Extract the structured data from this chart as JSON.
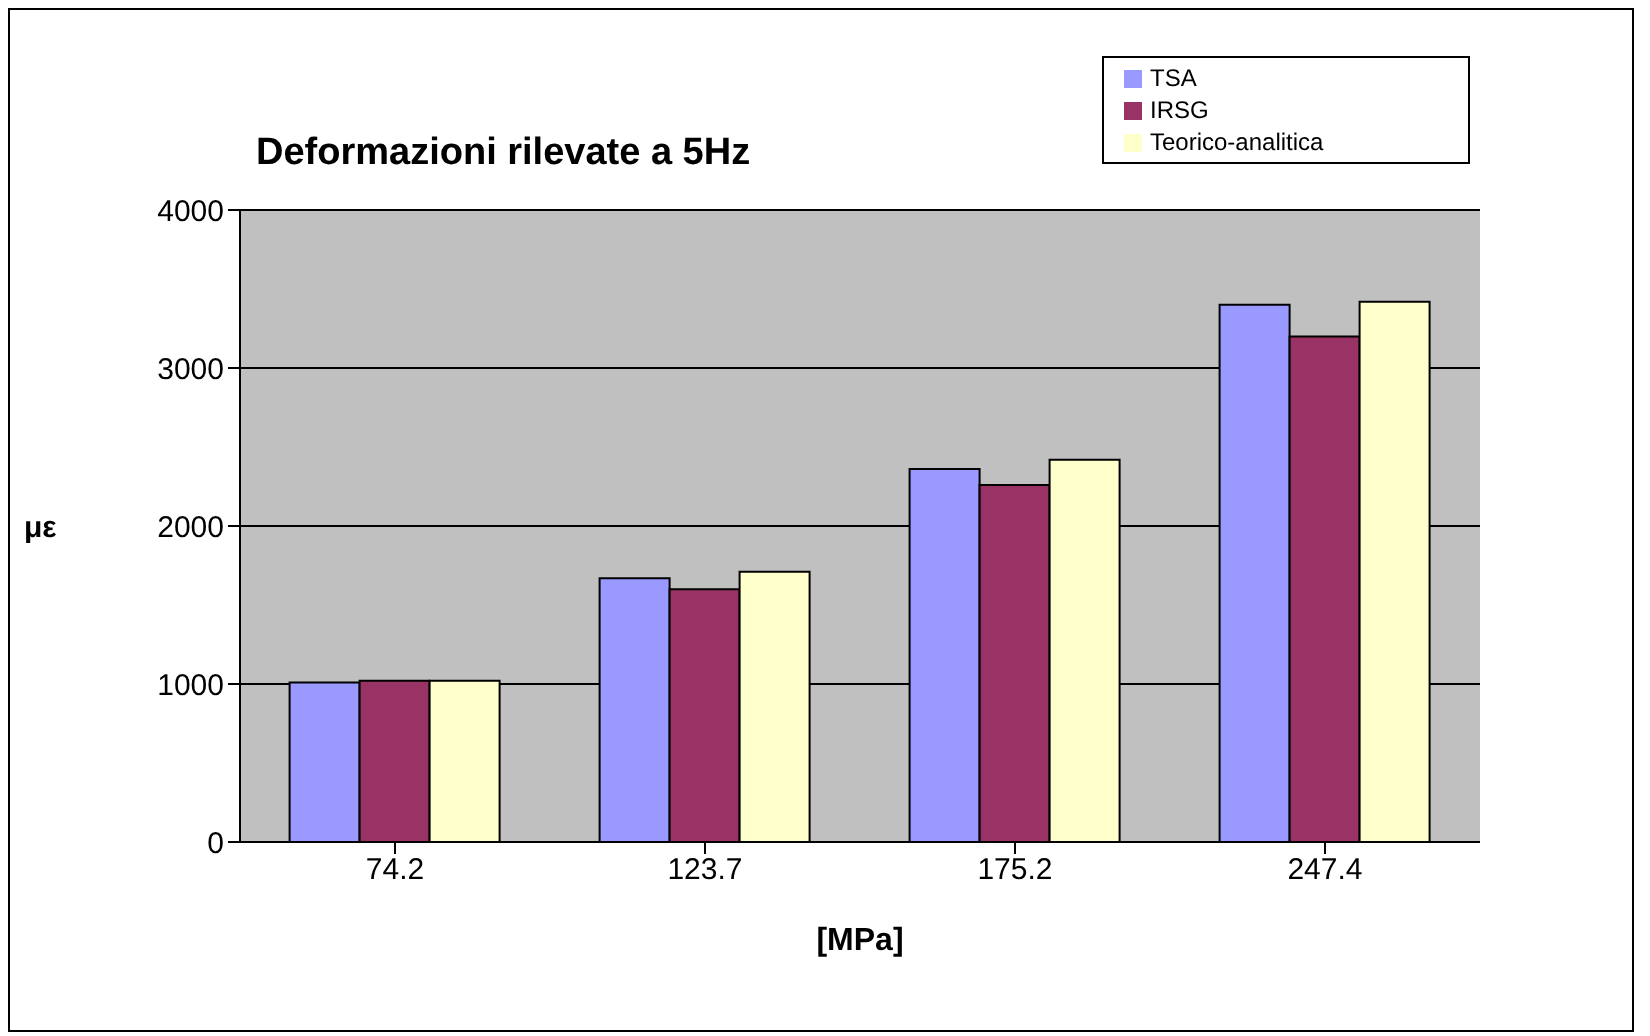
{
  "chart_data": {
    "type": "bar",
    "title": "Deformazioni rilevate a 5Hz",
    "xlabel": "[MPa]",
    "ylabel": "με",
    "categories": [
      "74.2",
      "123.7",
      "175.2",
      "247.4"
    ],
    "series": [
      {
        "name": "TSA",
        "color": "#9999ff",
        "values": [
          1010,
          1670,
          2360,
          3400
        ]
      },
      {
        "name": "IRSG",
        "color": "#993366",
        "values": [
          1020,
          1600,
          2260,
          3200
        ]
      },
      {
        "name": "Teorico-analitica",
        "color": "#ffffcc",
        "values": [
          1020,
          1710,
          2420,
          3420
        ]
      }
    ],
    "ylim": [
      0,
      4000
    ],
    "yticks": [
      0,
      1000,
      2000,
      3000,
      4000
    ],
    "grid": "y",
    "legend": "top right"
  }
}
